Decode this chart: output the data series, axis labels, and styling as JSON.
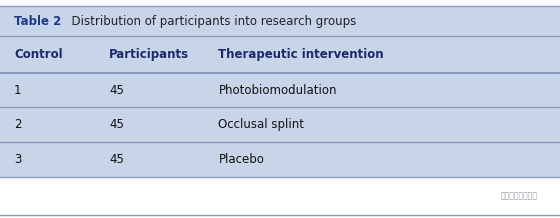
{
  "title_label": "Table 2",
  "title_text": "  Distribution of participants into research groups",
  "header": [
    "Control",
    "Participants",
    "Therapeutic intervention"
  ],
  "rows": [
    [
      "1",
      "45",
      "Photobiomodulation"
    ],
    [
      "2",
      "45",
      "Occlusal splint"
    ],
    [
      "3",
      "45",
      "Placebo"
    ]
  ],
  "title_bg": "#c8d4e8",
  "title_label_color": "#1a3a8c",
  "title_text_color": "#222222",
  "header_text_color": "#1a2a6b",
  "row_bg": "#c8d4e8",
  "outer_bg": "#ffffff",
  "bottom_bg": "#ffffff",
  "divider_color": "#8898b8",
  "watermark": "浙一口腔正奚林军",
  "figsize": [
    5.6,
    2.18
  ],
  "dpi": 100
}
